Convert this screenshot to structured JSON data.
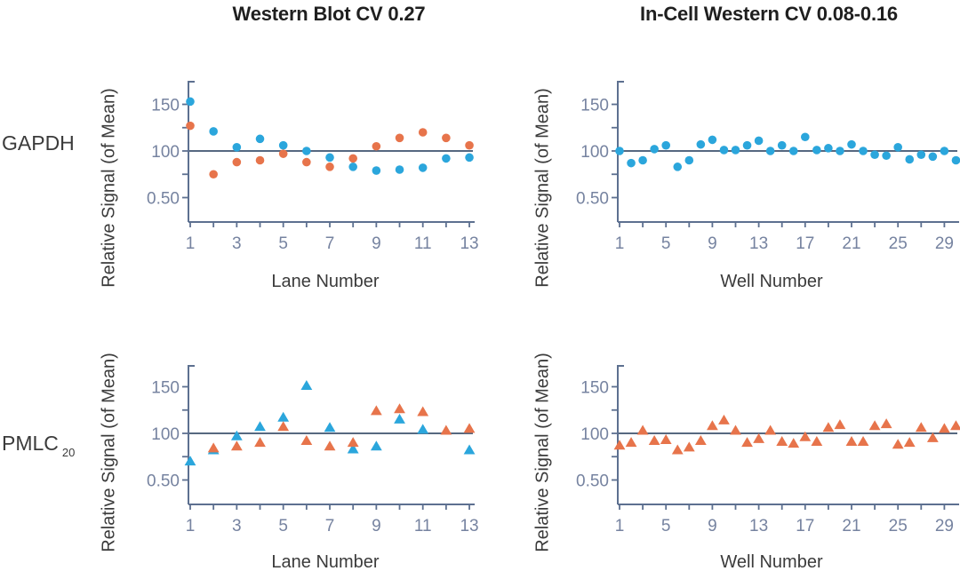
{
  "titles": [
    {
      "text": "Western Blot CV 0.27"
    },
    {
      "text": "In-Cell Western CV 0.08-0.16"
    }
  ],
  "row_labels": [
    {
      "text": "GAPDH",
      "subscript": ""
    },
    {
      "text": "PMLC",
      "subscript": "20"
    }
  ],
  "colors": {
    "marker_blue": "#2BA6DC",
    "marker_orange": "#E7744B",
    "axis": "#5D7090",
    "tick_label": "#7683A0",
    "mean_line": "#566880",
    "title_text": "#1F1F1F",
    "label_text": "#3B3B3B"
  },
  "chart_data": [
    {
      "name": "gapdh-western-blot",
      "type": "scatter",
      "quadrant": "top-left",
      "marker": "circle",
      "row": "GAPDH",
      "title": "Western Blot CV 0.27",
      "xlabel": "Lane Number",
      "ylabel": "Relative Signal (of Mean)",
      "xlim": [
        1,
        13
      ],
      "ylim": [
        25,
        175
      ],
      "grid": false,
      "mean_line": 100,
      "xtick_labels": [
        "1",
        "3",
        "5",
        "7",
        "9",
        "11",
        "13"
      ],
      "ytick_labels": [
        {
          "value": 150,
          "label": "150"
        },
        {
          "value": 100,
          "label": "100"
        },
        {
          "value": 50,
          "label": "0.50"
        }
      ],
      "y_minor_ticks": [
        125,
        75
      ],
      "series": [
        {
          "name": "series-blue",
          "color": "marker_blue",
          "x": [
            1,
            2,
            3,
            4,
            5,
            6,
            7,
            8,
            9,
            10,
            11,
            12,
            13
          ],
          "y": [
            153,
            121,
            104,
            113,
            106,
            100,
            93,
            83,
            79,
            80,
            82,
            92,
            93
          ]
        },
        {
          "name": "series-orange",
          "color": "marker_orange",
          "x": [
            1,
            2,
            3,
            4,
            5,
            6,
            7,
            8,
            9,
            10,
            11,
            12,
            13
          ],
          "y": [
            127,
            75,
            88,
            90,
            97,
            88,
            83,
            92,
            105,
            114,
            120,
            114,
            106
          ]
        }
      ]
    },
    {
      "name": "gapdh-in-cell-western",
      "type": "scatter",
      "quadrant": "top-right",
      "marker": "circle",
      "row": "GAPDH",
      "title": "In-Cell Western CV 0.08-0.16",
      "xlabel": "Well Number",
      "ylabel": "Relative Signal (of Mean)",
      "xlim": [
        1,
        30
      ],
      "ylim": [
        25,
        175
      ],
      "grid": false,
      "mean_line": 100,
      "xtick_labels": [
        "1",
        "5",
        "9",
        "13",
        "17",
        "21",
        "25",
        "29"
      ],
      "ytick_labels": [
        {
          "value": 150,
          "label": "150"
        },
        {
          "value": 100,
          "label": "100"
        },
        {
          "value": 50,
          "label": "0.50"
        }
      ],
      "y_minor_ticks": [
        125,
        75
      ],
      "series": [
        {
          "name": "series-blue",
          "color": "marker_blue",
          "x": [
            1,
            2,
            3,
            4,
            5,
            6,
            7,
            8,
            9,
            10,
            11,
            12,
            13,
            14,
            15,
            16,
            17,
            18,
            19,
            20,
            21,
            22,
            23,
            24,
            25,
            26,
            27,
            28,
            29,
            30
          ],
          "y": [
            100,
            87,
            90,
            102,
            106,
            83,
            90,
            107,
            112,
            101,
            101,
            106,
            111,
            100,
            106,
            100,
            115,
            101,
            103,
            100,
            107,
            100,
            96,
            95,
            104,
            91,
            96,
            94,
            100,
            90
          ]
        }
      ]
    },
    {
      "name": "pmlc20-western-blot",
      "type": "scatter",
      "quadrant": "bottom-left",
      "marker": "triangle",
      "row": "PMLC20",
      "title": "Western Blot CV 0.27",
      "xlabel": "Lane Number",
      "ylabel": "Relative Signal (of Mean)",
      "xlim": [
        1,
        13
      ],
      "ylim": [
        25,
        175
      ],
      "grid": false,
      "mean_line": 100,
      "xtick_labels": [
        "1",
        "3",
        "5",
        "7",
        "9",
        "11",
        "13"
      ],
      "ytick_labels": [
        {
          "value": 150,
          "label": "150"
        },
        {
          "value": 100,
          "label": "100"
        },
        {
          "value": 50,
          "label": "0.50"
        }
      ],
      "y_minor_ticks": [
        125,
        75
      ],
      "series": [
        {
          "name": "series-blue",
          "color": "marker_blue",
          "x": [
            1,
            2,
            3,
            4,
            5,
            6,
            7,
            8,
            9,
            10,
            11,
            13
          ],
          "y": [
            70,
            82,
            97,
            107,
            117,
            151,
            106,
            83,
            86,
            115,
            104,
            82
          ]
        },
        {
          "name": "series-orange",
          "color": "marker_orange",
          "x": [
            2,
            3,
            4,
            5,
            6,
            7,
            8,
            9,
            10,
            11,
            12,
            13
          ],
          "y": [
            84,
            86,
            90,
            107,
            92,
            86,
            90,
            124,
            126,
            123,
            103,
            105
          ]
        }
      ]
    },
    {
      "name": "pmlc20-in-cell-western",
      "type": "scatter",
      "quadrant": "bottom-right",
      "marker": "triangle",
      "row": "PMLC20",
      "title": "In-Cell Western CV 0.08-0.16",
      "xlabel": "Well Number",
      "ylabel": "Relative Signal (of Mean)",
      "xlim": [
        1,
        30
      ],
      "ylim": [
        25,
        175
      ],
      "grid": false,
      "mean_line": 100,
      "xtick_labels": [
        "1",
        "5",
        "9",
        "13",
        "17",
        "21",
        "25",
        "29"
      ],
      "ytick_labels": [
        {
          "value": 150,
          "label": "150"
        },
        {
          "value": 100,
          "label": "100"
        },
        {
          "value": 50,
          "label": "0.50"
        }
      ],
      "y_minor_ticks": [
        125,
        75
      ],
      "series": [
        {
          "name": "series-orange",
          "color": "marker_orange",
          "x": [
            1,
            2,
            3,
            4,
            5,
            6,
            7,
            8,
            9,
            10,
            11,
            12,
            13,
            14,
            15,
            16,
            17,
            18,
            19,
            20,
            21,
            22,
            23,
            24,
            25,
            26,
            27,
            28,
            29,
            30
          ],
          "y": [
            87,
            90,
            103,
            92,
            93,
            82,
            85,
            92,
            108,
            114,
            103,
            90,
            94,
            103,
            91,
            89,
            96,
            91,
            106,
            109,
            91,
            91,
            108,
            110,
            88,
            90,
            106,
            95,
            105,
            108
          ]
        }
      ]
    }
  ]
}
